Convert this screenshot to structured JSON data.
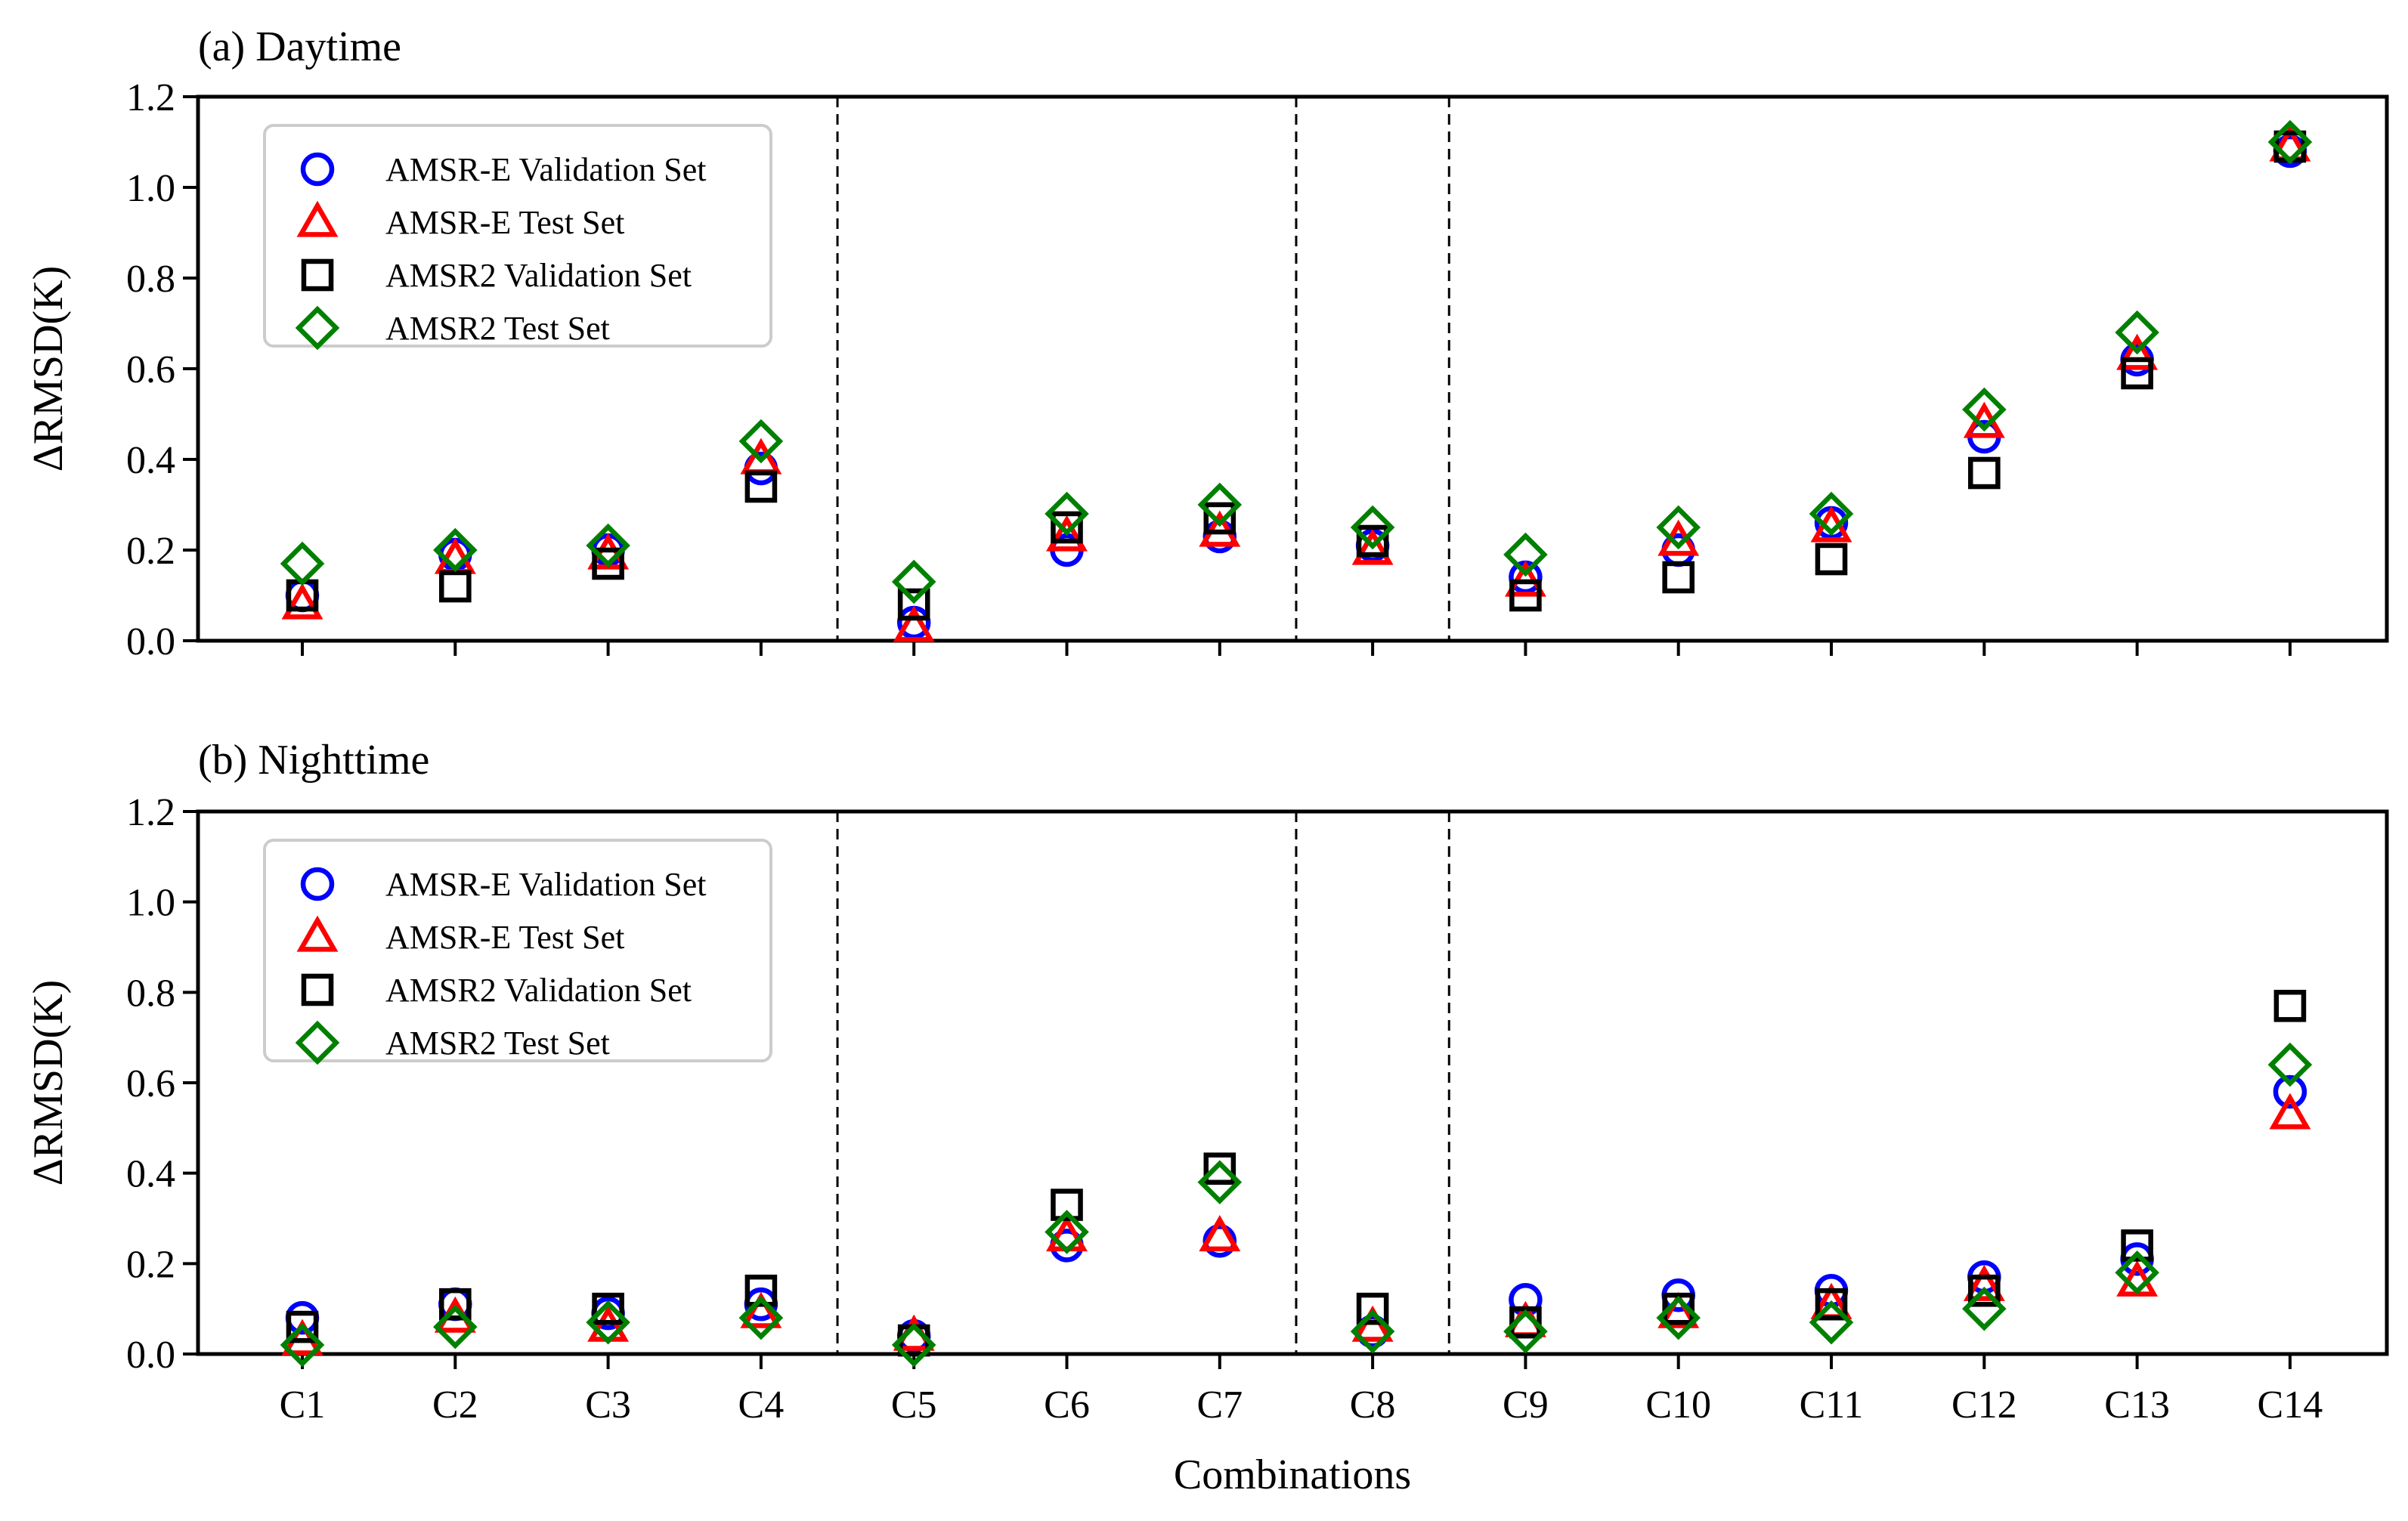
{
  "chart_data": {
    "type": "scatter",
    "xlabel": "Combinations",
    "ylabel": "ΔRMSD(K)",
    "categories": [
      "C1",
      "C2",
      "C3",
      "C4",
      "C5",
      "C6",
      "C7",
      "C8",
      "C9",
      "C10",
      "C11",
      "C12",
      "C13",
      "C14"
    ],
    "ylim": [
      0,
      1.2
    ],
    "yticks": [
      "0.0",
      "0.2",
      "0.4",
      "0.6",
      "0.8",
      "1.0",
      "1.2"
    ],
    "grid": false,
    "legend_position": "top-left",
    "group_separators_between": [
      [
        "C4",
        "C5"
      ],
      [
        "C7",
        "C8"
      ],
      [
        "C8",
        "C9"
      ]
    ],
    "series_styles": [
      {
        "name": "AMSR-E Validation Set",
        "marker": "circle",
        "color": "#0000ff"
      },
      {
        "name": "AMSR-E Test Set",
        "marker": "triangle",
        "color": "#ff0000"
      },
      {
        "name": "AMSR2 Validation Set",
        "marker": "square",
        "color": "#000000"
      },
      {
        "name": "AMSR2 Test Set",
        "marker": "diamond",
        "color": "#008000"
      }
    ],
    "panels": [
      {
        "title": "(a) Daytime",
        "series": [
          {
            "name": "AMSR-E Validation Set",
            "values": [
              0.1,
              0.19,
              0.2,
              0.38,
              0.04,
              0.2,
              0.23,
              0.21,
              0.14,
              0.2,
              0.26,
              0.45,
              0.62,
              1.08
            ]
          },
          {
            "name": "AMSR-E Test Set",
            "values": [
              0.08,
              0.18,
              0.19,
              0.4,
              0.03,
              0.23,
              0.24,
              0.2,
              0.13,
              0.22,
              0.25,
              0.48,
              0.63,
              1.09
            ]
          },
          {
            "name": "AMSR2 Validation Set",
            "values": [
              0.1,
              0.12,
              0.17,
              0.34,
              0.08,
              0.25,
              0.27,
              0.22,
              0.1,
              0.14,
              0.18,
              0.37,
              0.59,
              1.09
            ]
          },
          {
            "name": "AMSR2 Test Set",
            "values": [
              0.17,
              0.2,
              0.21,
              0.44,
              0.13,
              0.28,
              0.3,
              0.25,
              0.19,
              0.25,
              0.28,
              0.51,
              0.68,
              1.1
            ]
          }
        ]
      },
      {
        "title": "(b) Nighttime",
        "series": [
          {
            "name": "AMSR-E Validation Set",
            "values": [
              0.08,
              0.11,
              0.09,
              0.11,
              0.04,
              0.24,
              0.25,
              0.05,
              0.12,
              0.13,
              0.14,
              0.17,
              0.21,
              0.58
            ]
          },
          {
            "name": "AMSR-E Test Set",
            "values": [
              0.03,
              0.08,
              0.06,
              0.09,
              0.04,
              0.26,
              0.26,
              0.06,
              0.07,
              0.09,
              0.11,
              0.15,
              0.16,
              0.53
            ]
          },
          {
            "name": "AMSR2 Validation Set",
            "values": [
              0.06,
              0.11,
              0.1,
              0.14,
              0.03,
              0.33,
              0.41,
              0.1,
              0.07,
              0.1,
              0.11,
              0.14,
              0.24,
              0.77
            ]
          },
          {
            "name": "AMSR2 Test Set",
            "values": [
              0.02,
              0.06,
              0.07,
              0.08,
              0.02,
              0.27,
              0.38,
              0.05,
              0.05,
              0.08,
              0.07,
              0.1,
              0.18,
              0.64
            ]
          }
        ]
      }
    ]
  }
}
